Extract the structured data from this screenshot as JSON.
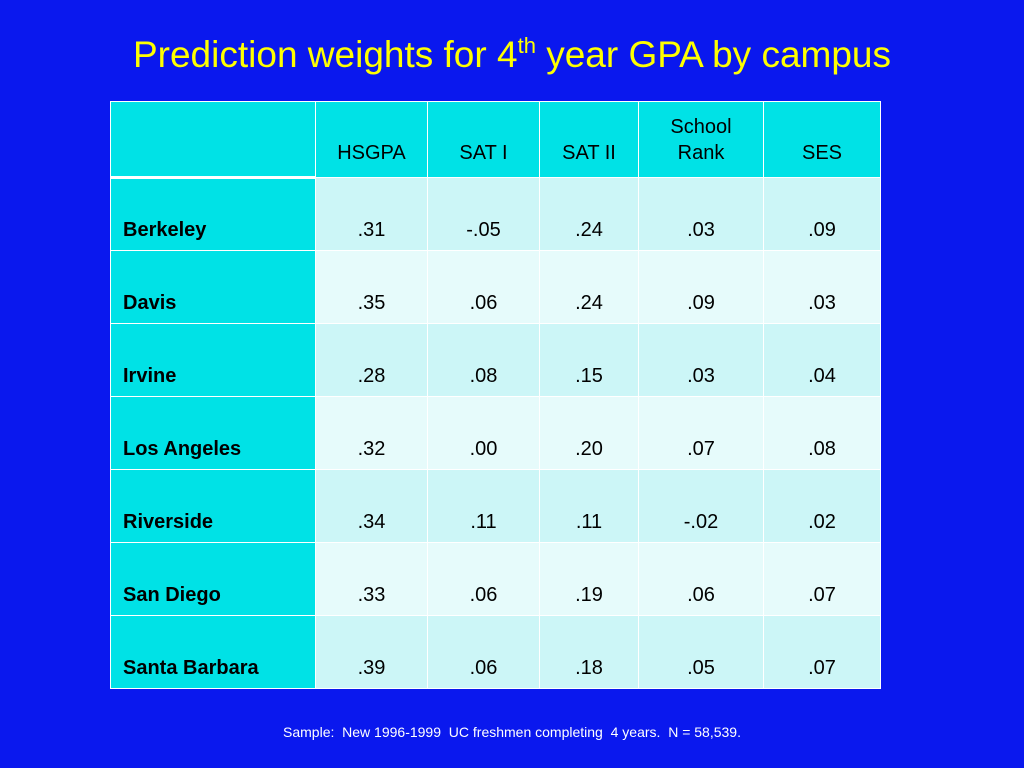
{
  "slide": {
    "title_main": "Prediction weights for 4",
    "title_sup": "th",
    "title_rest": " year GPA by campus",
    "footnote": "Sample:  New 1996-1999  UC freshmen completing  4 years.  N = 58,539."
  },
  "table": {
    "columns": [
      {
        "line1": "",
        "line2": "HSGPA"
      },
      {
        "line1": "",
        "line2": "SAT I"
      },
      {
        "line1": "",
        "line2": "SAT II"
      },
      {
        "line1": "School",
        "line2": "Rank"
      },
      {
        "line1": "",
        "line2": "SES"
      }
    ],
    "rows": [
      {
        "campus": "Berkeley",
        "values": [
          ".31",
          "-.05",
          ".24",
          ".03",
          ".09"
        ]
      },
      {
        "campus": "Davis",
        "values": [
          ".35",
          ".06",
          ".24",
          ".09",
          ".03"
        ]
      },
      {
        "campus": "Irvine",
        "values": [
          ".28",
          ".08",
          ".15",
          ".03",
          ".04"
        ]
      },
      {
        "campus": "Los Angeles",
        "values": [
          ".32",
          ".00",
          ".20",
          ".07",
          ".08"
        ]
      },
      {
        "campus": "Riverside",
        "values": [
          ".34",
          ".11",
          ".11",
          "-.02",
          ".02"
        ]
      },
      {
        "campus": "San Diego",
        "values": [
          ".33",
          ".06",
          ".19",
          ".06",
          ".07"
        ]
      },
      {
        "campus": "Santa Barbara",
        "values": [
          ".39",
          ".06",
          ".18",
          ".05",
          ".07"
        ]
      }
    ]
  },
  "colors": {
    "background": "#0a18ee",
    "title": "#ffff00",
    "header_cell": "#00e2e6",
    "row_light_a": "#ccf6f7",
    "row_light_b": "#e6fbfb"
  }
}
